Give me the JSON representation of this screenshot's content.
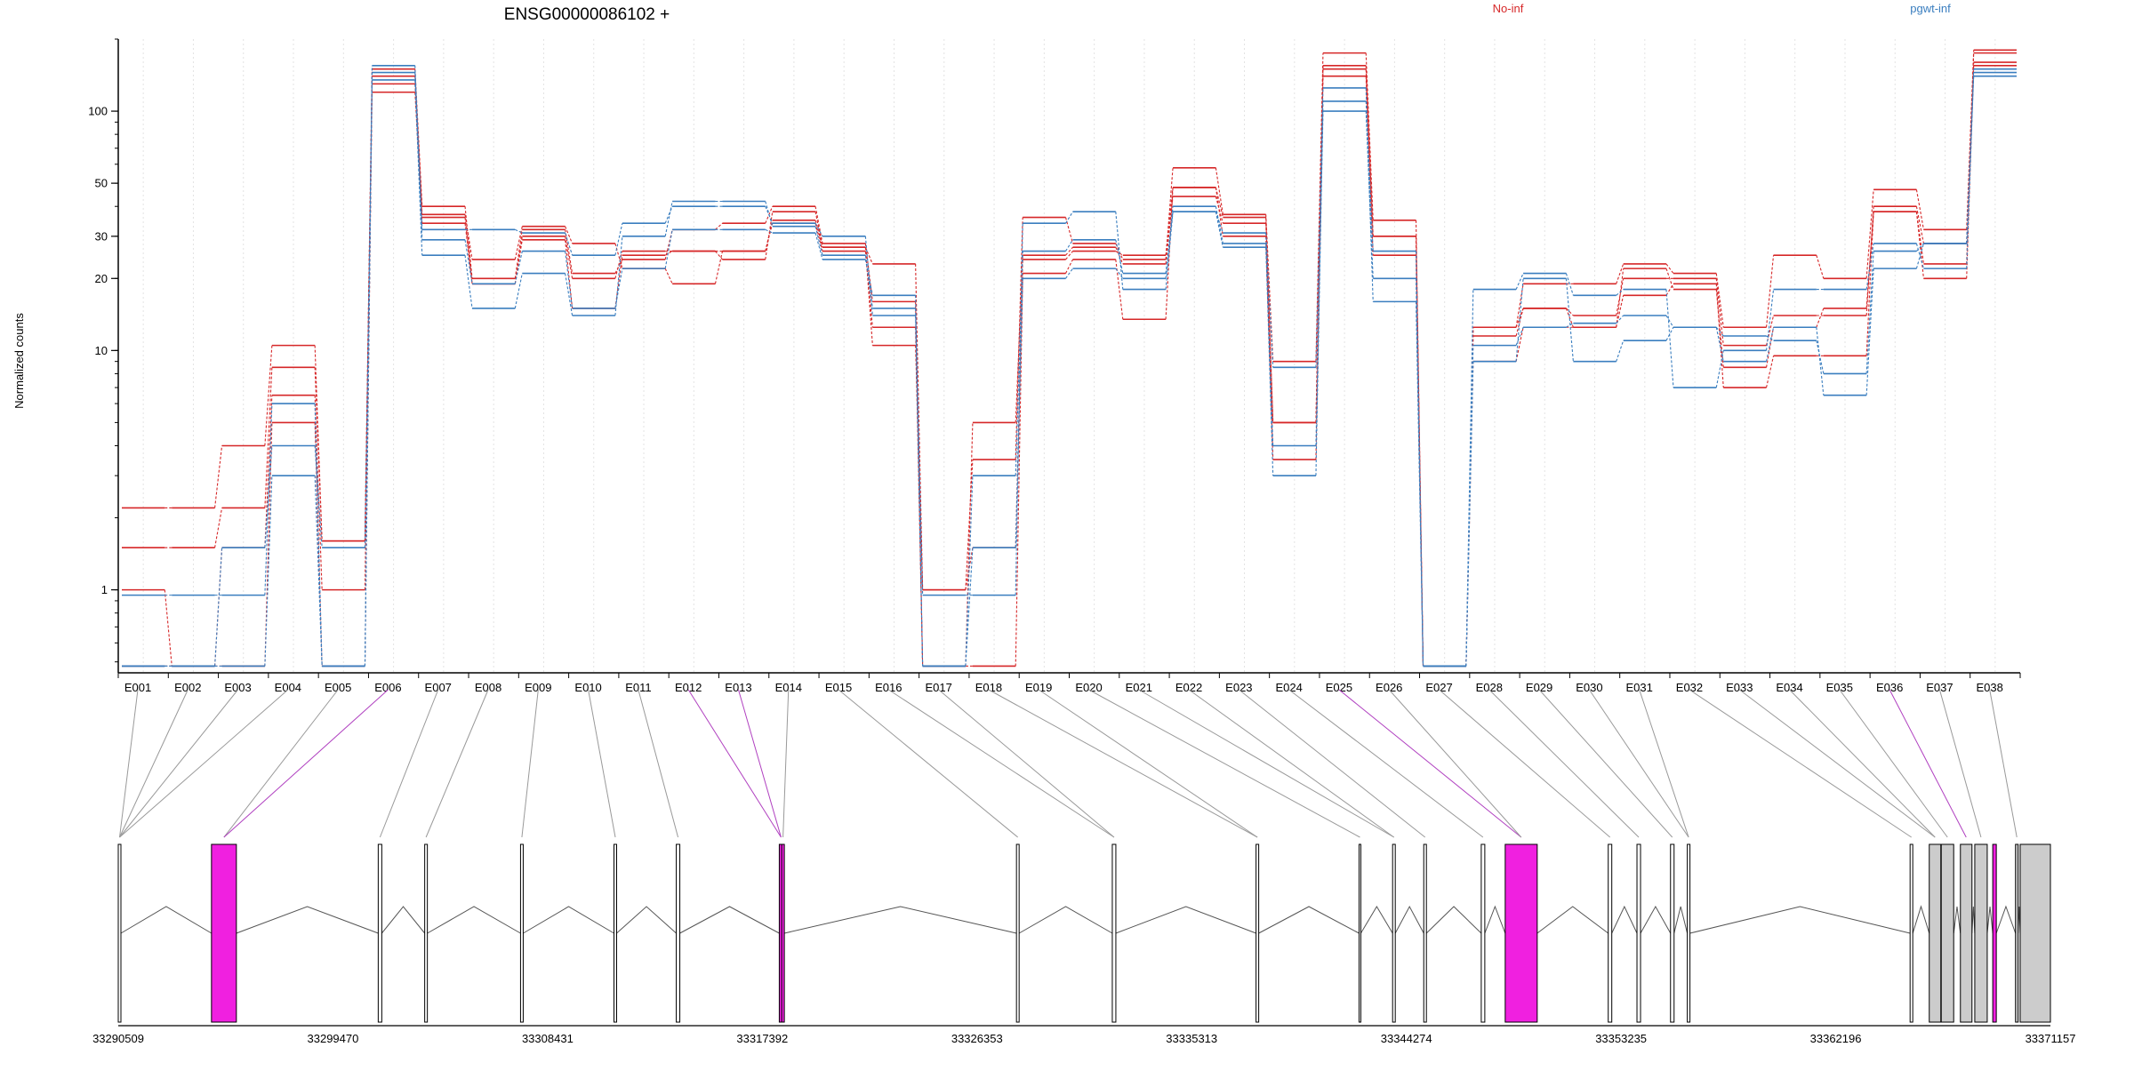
{
  "chart_data": {
    "type": "line",
    "title": "ENSG00000086102 +",
    "ylabel": "Normalized counts",
    "yscale": "log",
    "ylim": [
      0.45,
      200
    ],
    "yticks": [
      1,
      10,
      20,
      30,
      50,
      100
    ],
    "grid": "vertical",
    "legend": [
      {
        "name": "No-inf",
        "color": "#d62728"
      },
      {
        "name": "pgwt-inf",
        "color": "#3a7ebf"
      }
    ],
    "categories": [
      "E001",
      "E002",
      "E003",
      "E004",
      "E005",
      "E006",
      "E007",
      "E008",
      "E009",
      "E010",
      "E011",
      "E012",
      "E013",
      "E014",
      "E015",
      "E016",
      "E017",
      "E018",
      "E019",
      "E020",
      "E021",
      "E022",
      "E023",
      "E024",
      "E025",
      "E026",
      "E027",
      "E028",
      "E029",
      "E030",
      "E031",
      "E032",
      "E033",
      "E034",
      "E035",
      "E036",
      "E037",
      "E038"
    ],
    "series": [
      {
        "group": "No-inf",
        "values": [
          2.2,
          2.2,
          4.0,
          10.5,
          1.6,
          140,
          37,
          24,
          33,
          28,
          22,
          19,
          26,
          35,
          27,
          23,
          1.0,
          3.5,
          36,
          28,
          24,
          58,
          37,
          9.0,
          175,
          35,
          0.48,
          12.5,
          19,
          19,
          23,
          21,
          12.5,
          25,
          20,
          47,
          32,
          180
        ]
      },
      {
        "group": "No-inf",
        "values": [
          1.5,
          1.5,
          2.2,
          8.5,
          1.6,
          150,
          40,
          20,
          32,
          21,
          24,
          32,
          34,
          40,
          28,
          16,
          0.48,
          5.0,
          24,
          26,
          25,
          48,
          36,
          5.0,
          150,
          30,
          0.48,
          11.5,
          15,
          14,
          20,
          20,
          10.5,
          14,
          14,
          40,
          28,
          175
        ]
      },
      {
        "group": "No-inf",
        "values": [
          1.0,
          0.48,
          1.5,
          6.5,
          1.0,
          120,
          34,
          19,
          30,
          20,
          26,
          26,
          24,
          38,
          27,
          10.5,
          1.0,
          1.5,
          25,
          27,
          23,
          44,
          34,
          5.0,
          140,
          25,
          0.48,
          9.0,
          12.5,
          12.5,
          17,
          19,
          7.0,
          9.5,
          9.5,
          38,
          20,
          155
        ]
      },
      {
        "group": "No-inf",
        "values": [
          0.48,
          0.48,
          0.48,
          5.0,
          0.48,
          130,
          36,
          19,
          29,
          15,
          25,
          26,
          26,
          34,
          26,
          12.5,
          0.48,
          0.48,
          21,
          24,
          13.5,
          48,
          30,
          3.5,
          155,
          30,
          0.48,
          12.5,
          15,
          12.5,
          22,
          18,
          8.5,
          12.5,
          15,
          38,
          23,
          160
        ]
      },
      {
        "group": "pgwt-inf",
        "values": [
          0.95,
          0.95,
          0.95,
          6.0,
          0.48,
          145,
          32,
          32,
          31,
          25,
          34,
          40,
          40,
          34,
          30,
          14,
          0.95,
          0.95,
          34,
          38,
          18,
          38,
          31,
          8.5,
          125,
          16,
          0.48,
          18,
          21,
          17,
          18,
          7.0,
          10,
          18,
          18,
          28,
          22,
          145
        ]
      },
      {
        "group": "pgwt-inf",
        "values": [
          0.48,
          0.48,
          1.5,
          4.0,
          1.5,
          135,
          25,
          15,
          21,
          14,
          30,
          42,
          42,
          33,
          25,
          15,
          0.48,
          1.5,
          20,
          22,
          20,
          40,
          28,
          3.0,
          110,
          26,
          0.48,
          9.0,
          20,
          9.0,
          11,
          12.5,
          9.0,
          12.5,
          6.5,
          22,
          28,
          140
        ]
      },
      {
        "group": "pgwt-inf",
        "values": [
          0.48,
          0.48,
          0.48,
          3.0,
          0.48,
          155,
          29,
          19,
          26,
          15,
          22,
          32,
          32,
          31,
          24,
          17,
          0.48,
          3.0,
          26,
          29,
          21,
          38,
          27,
          4.0,
          100,
          20,
          0.48,
          10.5,
          12.5,
          13,
          14,
          12.5,
          11.5,
          11,
          8.0,
          26,
          28,
          150
        ]
      }
    ],
    "x_scale": {
      "start": "33290509",
      "end": "33371157",
      "ticks": [
        "33290509",
        "33299470",
        "33308431",
        "33317392",
        "33326353",
        "33335313",
        "33344274",
        "33353235",
        "33362196",
        "33371157"
      ]
    },
    "exon_starts": [
      33290509,
      33294400,
      33301360,
      33303300,
      33307300,
      33311200,
      33313800,
      33318100,
      33318200,
      33328000,
      33332000,
      33338000,
      33342300,
      33343700,
      33345000,
      33347400,
      33348400,
      33352700,
      33353900,
      33355300,
      33356000,
      33365300,
      33366100,
      33366600,
      33367400,
      33368000,
      33368750,
      33369700,
      33371157
    ]
  }
}
